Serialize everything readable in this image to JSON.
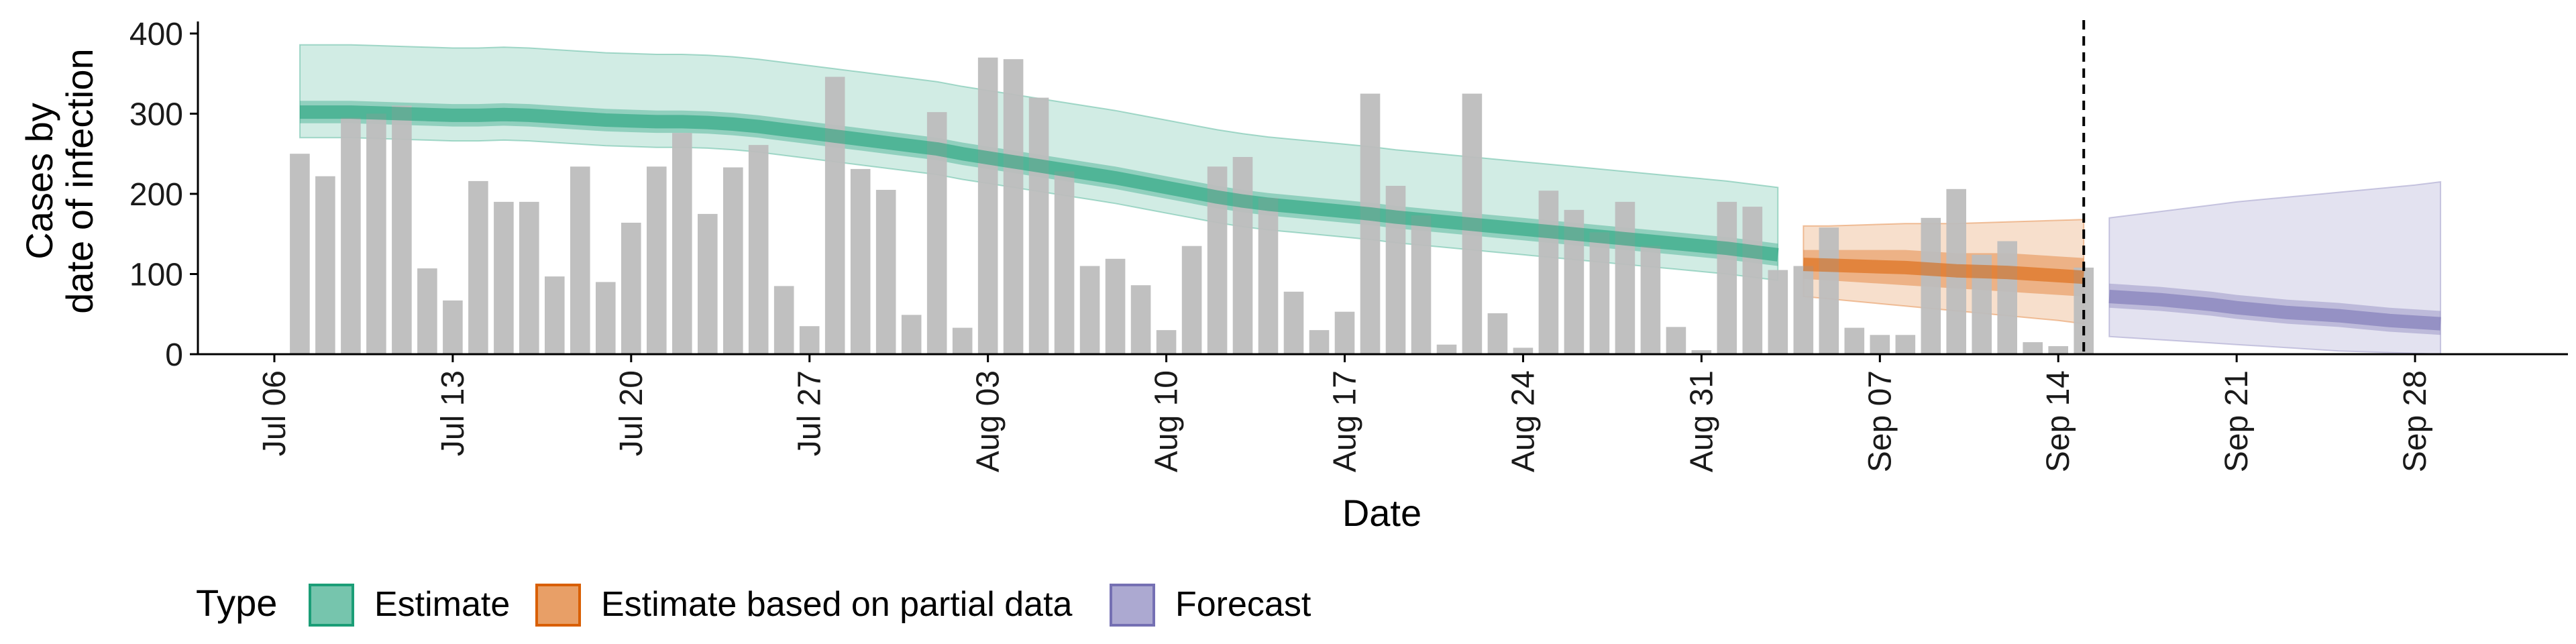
{
  "chart_data": {
    "type": "bar",
    "title": "",
    "xlabel": "Date",
    "ylabel_lines": [
      "Cases by",
      "date of infection"
    ],
    "ylim": [
      0,
      410
    ],
    "yticks": [
      0,
      100,
      200,
      300,
      400
    ],
    "xlim": [
      "2020-07-03",
      "2020-10-04"
    ],
    "xtick_labels": [
      "Jul 06",
      "Jul 13",
      "Jul 20",
      "Jul 27",
      "Aug 03",
      "Aug 10",
      "Aug 17",
      "Aug 24",
      "Aug 31",
      "Sep 07",
      "Sep 14",
      "Sep 21",
      "Sep 28"
    ],
    "xtick_dates": [
      "2020-07-06",
      "2020-07-13",
      "2020-07-20",
      "2020-07-27",
      "2020-08-03",
      "2020-08-10",
      "2020-08-17",
      "2020-08-24",
      "2020-08-31",
      "2020-09-07",
      "2020-09-14",
      "2020-09-21",
      "2020-09-28"
    ],
    "grid": false,
    "vline_date": "2020-09-15",
    "bars": {
      "color": "#bdbdbd",
      "start_date": "2020-07-07",
      "values": [
        250,
        222,
        295,
        300,
        310,
        107,
        67,
        216,
        190,
        190,
        97,
        234,
        90,
        164,
        234,
        276,
        175,
        233,
        261,
        85,
        35,
        346,
        231,
        205,
        49,
        302,
        33,
        370,
        368,
        320,
        228,
        110,
        119,
        86,
        30,
        135,
        234,
        246,
        195,
        78,
        30,
        53,
        325,
        210,
        173,
        12,
        325,
        51,
        8,
        204,
        180,
        152,
        190,
        135,
        34,
        5,
        190,
        184,
        105,
        110,
        158,
        33,
        24,
        24,
        170,
        206,
        124,
        141,
        15,
        10,
        108
      ]
    },
    "series": [
      {
        "name": "Estimate",
        "color": "#1b9e77",
        "start_date": "2020-07-07",
        "median": [
          302,
          302,
          302,
          301,
          300,
          299,
          298,
          298,
          299,
          298,
          296,
          294,
          292,
          291,
          290,
          290,
          289,
          287,
          284,
          280,
          276,
          272,
          268,
          264,
          260,
          256,
          250,
          245,
          240,
          235,
          230,
          225,
          220,
          214,
          208,
          202,
          196,
          191,
          187,
          184,
          181,
          178,
          175,
          171,
          168,
          165,
          162,
          159,
          156,
          153,
          150,
          147,
          144,
          141,
          138,
          135,
          132,
          128,
          124
        ],
        "q25": [
          288,
          288,
          288,
          287,
          286,
          285,
          284,
          284,
          285,
          284,
          282,
          280,
          278,
          277,
          276,
          276,
          275,
          273,
          270,
          266,
          262,
          258,
          254,
          250,
          246,
          242,
          236,
          231,
          226,
          221,
          216,
          211,
          206,
          200,
          194,
          188,
          182,
          177,
          173,
          170,
          167,
          164,
          161,
          157,
          154,
          151,
          148,
          145,
          142,
          139,
          136,
          133,
          130,
          127,
          124,
          121,
          118,
          114,
          110
        ],
        "q75": [
          316,
          316,
          316,
          315,
          314,
          313,
          312,
          312,
          313,
          312,
          310,
          308,
          306,
          305,
          304,
          304,
          303,
          301,
          298,
          294,
          290,
          286,
          282,
          278,
          274,
          270,
          264,
          259,
          254,
          249,
          244,
          239,
          234,
          228,
          222,
          216,
          210,
          205,
          201,
          198,
          195,
          192,
          189,
          185,
          182,
          179,
          176,
          173,
          170,
          167,
          164,
          161,
          158,
          155,
          152,
          149,
          146,
          142,
          138
        ],
        "lower_90": [
          270,
          270,
          270,
          269,
          268,
          267,
          266,
          266,
          267,
          266,
          264,
          262,
          260,
          259,
          258,
          258,
          257,
          255,
          252,
          248,
          244,
          240,
          236,
          232,
          228,
          224,
          218,
          213,
          208,
          203,
          198,
          193,
          188,
          182,
          176,
          170,
          164,
          159,
          155,
          152,
          149,
          146,
          143,
          139,
          136,
          133,
          130,
          127,
          124,
          121,
          118,
          115,
          112,
          109,
          106,
          103,
          100,
          96,
          92
        ],
        "upper_90": [
          386,
          386,
          386,
          385,
          384,
          383,
          382,
          382,
          383,
          382,
          380,
          378,
          376,
          375,
          374,
          374,
          373,
          371,
          368,
          364,
          360,
          356,
          352,
          348,
          344,
          340,
          334,
          329,
          324,
          319,
          314,
          309,
          304,
          298,
          292,
          286,
          280,
          275,
          271,
          268,
          265,
          262,
          259,
          255,
          252,
          249,
          246,
          243,
          240,
          237,
          234,
          231,
          228,
          225,
          222,
          219,
          216,
          212,
          208
        ]
      },
      {
        "name": "Estimate based on partial data",
        "color": "#d95f02",
        "start_date": "2020-09-04",
        "median": [
          112,
          111,
          110,
          109,
          108,
          106,
          104,
          103,
          102,
          100,
          98,
          96
        ],
        "q25": [
          94,
          92,
          90,
          88,
          86,
          84,
          82,
          80,
          78,
          76,
          74,
          72
        ],
        "q75": [
          130,
          130,
          130,
          130,
          130,
          128,
          126,
          126,
          126,
          124,
          122,
          120
        ],
        "lower_90": [
          72,
          69,
          66,
          63,
          60,
          57,
          54,
          51,
          48,
          45,
          42,
          38
        ],
        "upper_90": [
          160,
          160,
          161,
          162,
          163,
          163,
          163,
          164,
          165,
          166,
          167,
          168
        ]
      },
      {
        "name": "Forecast",
        "color": "#7570b3",
        "start_date": "2020-09-16",
        "median": [
          72,
          70,
          68,
          65,
          62,
          58,
          55,
          52,
          50,
          48,
          45,
          42,
          40,
          38
        ],
        "q25": [
          58,
          56,
          54,
          51,
          48,
          44,
          41,
          38,
          36,
          34,
          31,
          28,
          26,
          24
        ],
        "q75": [
          88,
          86,
          84,
          81,
          78,
          74,
          71,
          68,
          66,
          64,
          61,
          58,
          56,
          54
        ],
        "lower_90": [
          22,
          20,
          18,
          16,
          14,
          12,
          10,
          8,
          6,
          4,
          3,
          2,
          1,
          0
        ],
        "upper_90": [
          170,
          174,
          178,
          182,
          186,
          190,
          193,
          196,
          199,
          202,
          205,
          208,
          211,
          215
        ]
      }
    ],
    "legend": {
      "title": "Type",
      "position": "bottom",
      "entries": [
        "Estimate",
        "Estimate based on partial data",
        "Forecast"
      ]
    }
  }
}
